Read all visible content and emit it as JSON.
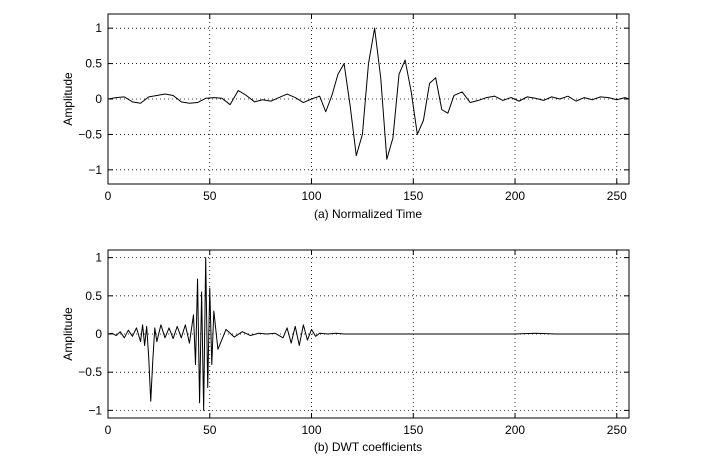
{
  "chart_data": [
    {
      "type": "line",
      "title": "",
      "xlabel": "(a) Normalized Time",
      "ylabel": "Amplitude",
      "xlim": [
        0,
        256
      ],
      "ylim": [
        -1.2,
        1.2
      ],
      "xticks": [
        0,
        50,
        100,
        150,
        200,
        250
      ],
      "yticks": [
        -1,
        -0.5,
        0,
        0.5,
        1
      ],
      "ytick_labels": [
        "−1",
        "−0.5",
        "0",
        "0.5",
        "1"
      ],
      "grid": true,
      "series": [
        {
          "x": [
            0,
            4,
            8,
            12,
            16,
            20,
            24,
            28,
            32,
            36,
            40,
            44,
            48,
            52,
            56,
            60,
            64,
            68,
            72,
            76,
            80,
            84,
            88,
            92,
            96,
            100,
            104,
            107,
            110,
            113,
            116,
            119,
            122,
            125,
            128,
            131,
            134,
            137,
            140,
            143,
            146,
            149,
            152,
            155,
            158,
            161,
            164,
            167,
            170,
            174,
            178,
            182,
            186,
            190,
            194,
            198,
            202,
            206,
            210,
            214,
            218,
            222,
            226,
            230,
            234,
            238,
            242,
            246,
            250,
            254,
            256
          ],
          "y": [
            0,
            0.02,
            0.03,
            -0.04,
            -0.06,
            0.03,
            0.05,
            0.07,
            0.05,
            -0.04,
            -0.06,
            -0.05,
            0.01,
            0.02,
            0.01,
            -0.08,
            0.12,
            0.05,
            -0.04,
            -0.01,
            -0.03,
            0.02,
            0.07,
            0.02,
            -0.05,
            0,
            0.04,
            -0.18,
            0.05,
            0.35,
            0.5,
            -0.1,
            -0.8,
            -0.5,
            0.5,
            1.0,
            0.3,
            -0.85,
            -0.55,
            0.35,
            0.55,
            0.1,
            -0.5,
            -0.3,
            0.22,
            0.3,
            -0.15,
            -0.2,
            0.05,
            0.1,
            -0.05,
            -0.02,
            0.02,
            0.04,
            -0.02,
            0.02,
            -0.03,
            0.03,
            0.01,
            -0.02,
            0.03,
            0,
            0.04,
            -0.03,
            0.02,
            -0.01,
            0.03,
            0.02,
            -0.01,
            0.02,
            0
          ]
        }
      ]
    },
    {
      "type": "line",
      "title": "",
      "xlabel": "(b) DWT coefficients",
      "ylabel": "Amplitude",
      "xlim": [
        0,
        256
      ],
      "ylim": [
        -1.1,
        1.1
      ],
      "xticks": [
        0,
        50,
        100,
        150,
        200,
        250
      ],
      "yticks": [
        -1,
        -0.5,
        0,
        0.5,
        1
      ],
      "ytick_labels": [
        "−1",
        "−0.5",
        "0",
        "0.5",
        "1"
      ],
      "grid": true,
      "series": [
        {
          "x": [
            0,
            2,
            4,
            6,
            8,
            10,
            12,
            14,
            16,
            17,
            18,
            19,
            20,
            21,
            22,
            23,
            24,
            26,
            28,
            30,
            32,
            34,
            36,
            38,
            40,
            42,
            43,
            44,
            45,
            46,
            47,
            48,
            49,
            50,
            51,
            52,
            54,
            58,
            62,
            66,
            70,
            74,
            78,
            82,
            86,
            88,
            90,
            92,
            94,
            96,
            98,
            100,
            102,
            104,
            108,
            112,
            116,
            120,
            130,
            140,
            150,
            160,
            170,
            180,
            190,
            200,
            210,
            220,
            230,
            240,
            250,
            256
          ],
          "y": [
            0,
            0.01,
            -0.02,
            0.03,
            -0.05,
            0.05,
            -0.03,
            0.08,
            -0.1,
            0.12,
            -0.15,
            0.1,
            -0.3,
            -0.88,
            -0.35,
            0.08,
            -0.1,
            0.12,
            -0.05,
            0.08,
            -0.06,
            0.1,
            -0.05,
            0.12,
            -0.12,
            0.25,
            -0.4,
            0.72,
            -0.9,
            0.55,
            -1.0,
            1.0,
            -0.7,
            0.6,
            -0.4,
            0.3,
            -0.2,
            0.06,
            -0.04,
            0.03,
            -0.02,
            0.01,
            0,
            0.01,
            -0.05,
            0.08,
            -0.12,
            0.1,
            -0.15,
            0.12,
            -0.08,
            0.06,
            -0.03,
            0.01,
            0,
            0.01,
            0,
            0,
            0,
            0,
            0,
            0,
            0,
            0,
            0,
            0,
            0.01,
            0,
            0,
            0,
            0,
            0
          ]
        }
      ]
    }
  ]
}
